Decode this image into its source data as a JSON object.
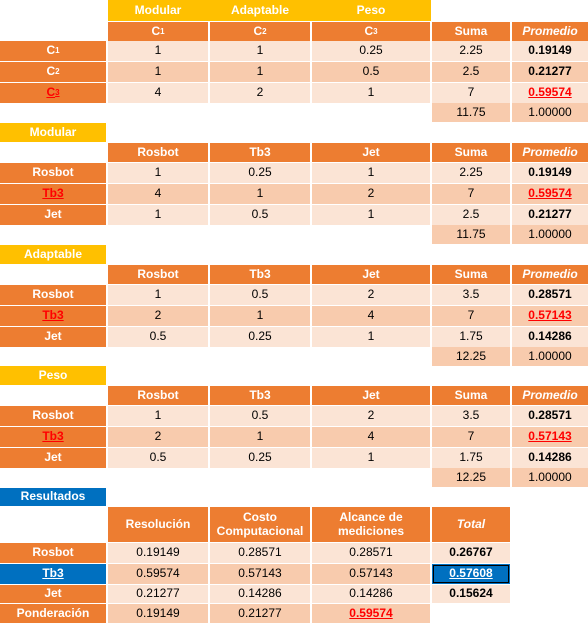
{
  "top": {
    "crit_headers": [
      "Modular",
      "Adaptable",
      "Peso"
    ],
    "col_headers": [
      [
        "C",
        "1"
      ],
      [
        "C",
        "2"
      ],
      [
        "C",
        "3"
      ]
    ],
    "suma_label": "Suma",
    "promedio_label": "Promedio",
    "rows": [
      {
        "label": [
          "C",
          "1"
        ],
        "values": [
          "1",
          "1",
          "0.25"
        ],
        "suma": "2.25",
        "prom": "0.19149"
      },
      {
        "label": [
          "C",
          "2"
        ],
        "values": [
          "1",
          "1",
          "0.5"
        ],
        "suma": "2.5",
        "prom": "0.21277"
      },
      {
        "label": [
          "C",
          "3"
        ],
        "values": [
          "4",
          "2",
          "1"
        ],
        "suma": "7",
        "prom": "0.59574"
      }
    ],
    "total_suma": "11.75",
    "total_prom": "1.00000"
  },
  "blocks": [
    {
      "title": "Modular",
      "cols": [
        "Rosbot",
        "Tb3",
        "Jet"
      ],
      "suma_label": "Suma",
      "promedio_label": "Promedio",
      "rows": [
        {
          "label": "Rosbot",
          "values": [
            "1",
            "0.25",
            "1"
          ],
          "suma": "2.25",
          "prom": "0.19149"
        },
        {
          "label": "Tb3",
          "values": [
            "4",
            "1",
            "2"
          ],
          "suma": "7",
          "prom": "0.59574"
        },
        {
          "label": "Jet",
          "values": [
            "1",
            "0.5",
            "1"
          ],
          "suma": "2.5",
          "prom": "0.21277"
        }
      ],
      "total_suma": "11.75",
      "total_prom": "1.00000"
    },
    {
      "title": "Adaptable",
      "cols": [
        "Rosbot",
        "Tb3",
        "Jet"
      ],
      "suma_label": "Suma",
      "promedio_label": "Promedio",
      "rows": [
        {
          "label": "Rosbot",
          "values": [
            "1",
            "0.5",
            "2"
          ],
          "suma": "3.5",
          "prom": "0.28571"
        },
        {
          "label": "Tb3",
          "values": [
            "2",
            "1",
            "4"
          ],
          "suma": "7",
          "prom": "0.57143"
        },
        {
          "label": "Jet",
          "values": [
            "0.5",
            "0.25",
            "1"
          ],
          "suma": "1.75",
          "prom": "0.14286"
        }
      ],
      "total_suma": "12.25",
      "total_prom": "1.00000"
    },
    {
      "title": "Peso",
      "cols": [
        "Rosbot",
        "Tb3",
        "Jet"
      ],
      "suma_label": "Suma",
      "promedio_label": "Promedio",
      "rows": [
        {
          "label": "Rosbot",
          "values": [
            "1",
            "0.5",
            "2"
          ],
          "suma": "3.5",
          "prom": "0.28571"
        },
        {
          "label": "Tb3",
          "values": [
            "2",
            "1",
            "4"
          ],
          "suma": "7",
          "prom": "0.57143"
        },
        {
          "label": "Jet",
          "values": [
            "0.5",
            "0.25",
            "1"
          ],
          "suma": "1.75",
          "prom": "0.14286"
        }
      ],
      "total_suma": "12.25",
      "total_prom": "1.00000"
    }
  ],
  "results": {
    "title": "Resultados",
    "cols": [
      "Resolución",
      "Costo Computacional",
      "Alcance de mediciones"
    ],
    "total_label": "Total",
    "rows": [
      {
        "label": "Rosbot",
        "values": [
          "0.19149",
          "0.28571",
          "0.28571"
        ],
        "total": "0.26767"
      },
      {
        "label": "Tb3",
        "values": [
          "0.59574",
          "0.57143",
          "0.57143"
        ],
        "total": "0.57608"
      },
      {
        "label": "Jet",
        "values": [
          "0.21277",
          "0.14286",
          "0.14286"
        ],
        "total": "0.15624"
      }
    ],
    "ponderacion": {
      "label": "Ponderación",
      "values": [
        "0.19149",
        "0.21277",
        "0.59574"
      ]
    }
  },
  "colors": {
    "header": "#ed7d31",
    "title": "#ffc000",
    "results_title": "#0070c0",
    "row_light": "#fbe4d5",
    "row_mid": "#f8cbad",
    "highlight": "#ff0000"
  }
}
